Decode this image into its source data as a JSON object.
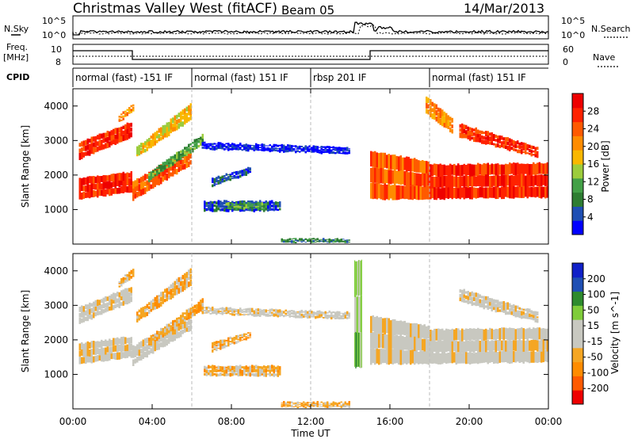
{
  "header": {
    "title": "Christmas Valley West (fitACF)",
    "beam": "Beam 05",
    "date": "14/Mar/2013"
  },
  "top_panels": {
    "nsky_label": "N.Sky",
    "nsky_ticks": [
      "10^5",
      "10^0"
    ],
    "nsky_right_ticks": [
      "10^5",
      "10^0"
    ],
    "nsearch_label": "N.Search",
    "freq_label_1": "Freq.",
    "freq_label_2": "[MHz]",
    "freq_ticks": [
      "10",
      "8"
    ],
    "nave_ticks": [
      "60",
      "0"
    ],
    "nave_label": "Nave",
    "cpid_label": "CPID"
  },
  "cpid_segments": [
    {
      "label": "normal (fast) -151 IF",
      "start_hour": 0,
      "end_hour": 6
    },
    {
      "label": "normal (fast) 151 IF",
      "start_hour": 6,
      "end_hour": 12
    },
    {
      "label": "rbsp 201 IF",
      "start_hour": 12,
      "end_hour": 18
    },
    {
      "label": "normal (fast) 151 IF",
      "start_hour": 18,
      "end_hour": 24
    }
  ],
  "chart_data": [
    {
      "type": "heatmap",
      "panel": "power",
      "ylabel": "Slant Range [km]",
      "yticks": [
        1000,
        2000,
        3000,
        4000
      ],
      "ylim": [
        0,
        4500
      ],
      "xlim_hours": [
        0,
        24
      ],
      "colorbar_label": "Power [dB]",
      "colorbar_ticks": [
        "28",
        "24",
        "20",
        "16",
        "12",
        "8",
        "4"
      ],
      "colors": [
        "#0000ff",
        "#1f4fb4",
        "#2e7d32",
        "#43a047",
        "#9ccc3c",
        "#f9b700",
        "#ff8c00",
        "#ff5a00",
        "#ff2200",
        "#ee0000"
      ],
      "regions": [
        {
          "t0": 0.3,
          "t1": 3.0,
          "r0": 1300,
          "r1": 1900,
          "r0e": 1500,
          "r1e": 2100,
          "c": 8
        },
        {
          "t0": 0.3,
          "t1": 3.0,
          "r0": 2450,
          "r1": 2950,
          "r0e": 3100,
          "r1e": 3550,
          "c": 8
        },
        {
          "t0": 2.3,
          "t1": 3.1,
          "r0": 3500,
          "r1": 3700,
          "r0e": 3850,
          "r1e": 4100,
          "c": 6
        },
        {
          "t0": 3.0,
          "t1": 6.0,
          "r0": 1250,
          "r1": 1800,
          "r0e": 2300,
          "r1e": 2800,
          "c": 7
        },
        {
          "t0": 3.2,
          "t1": 6.0,
          "r0": 2500,
          "r1": 2800,
          "r0e": 3600,
          "r1e": 4100,
          "c": 5
        },
        {
          "t0": 3.8,
          "t1": 6.6,
          "r0": 1800,
          "r1": 2050,
          "r0e": 2900,
          "r1e": 3200,
          "c": 3
        },
        {
          "t0": 6.6,
          "t1": 10.5,
          "r0": 950,
          "r1": 1250,
          "r0e": 950,
          "r1e": 1250,
          "c": 1
        },
        {
          "t0": 7.7,
          "t1": 9.8,
          "r0": 1000,
          "r1": 1200,
          "r0e": 1000,
          "r1e": 1200,
          "c": 3
        },
        {
          "t0": 7.0,
          "t1": 9.0,
          "r0": 1650,
          "r1": 1900,
          "r0e": 2050,
          "r1e": 2250,
          "c": 1
        },
        {
          "t0": 6.5,
          "t1": 14.0,
          "r0": 2750,
          "r1": 2950,
          "r0e": 2600,
          "r1e": 2800,
          "c": 0
        },
        {
          "t0": 10.5,
          "t1": 14.0,
          "r0": 50,
          "r1": 150,
          "r0e": 50,
          "r1e": 150,
          "c": 2
        },
        {
          "t0": 15.0,
          "t1": 18.0,
          "r0": 1300,
          "r1": 2700,
          "r0e": 1300,
          "r1e": 2400,
          "c": 7
        },
        {
          "t0": 18.0,
          "t1": 24.0,
          "r0": 1300,
          "r1": 2300,
          "r0e": 1350,
          "r1e": 2350,
          "c": 8
        },
        {
          "t0": 19.5,
          "t1": 23.5,
          "r0": 3100,
          "r1": 3500,
          "r0e": 2500,
          "r1e": 2800,
          "c": 8
        },
        {
          "t0": 17.8,
          "t1": 19.2,
          "r0": 3800,
          "r1": 4300,
          "r0e": 3200,
          "r1e": 3600,
          "c": 6
        }
      ]
    },
    {
      "type": "heatmap",
      "panel": "velocity",
      "ylabel": "Slant Range [km]",
      "yticks": [
        1000,
        2000,
        3000,
        4000
      ],
      "ylim": [
        0,
        4500
      ],
      "xlim_hours": [
        0,
        24
      ],
      "xticks": [
        "00:00",
        "04:00",
        "08:00",
        "12:00",
        "16:00",
        "20:00",
        "00:00"
      ],
      "xlabel": "Time UT",
      "colorbar_label": "Velocity [m s^-1]",
      "colorbar_ticks": [
        "200",
        "100",
        "50",
        "15",
        "-15",
        "-50",
        "-100",
        "-200"
      ],
      "colors": [
        "#ee0000",
        "#ff5a00",
        "#ff8c00",
        "#f5a623",
        "#c8c8c0",
        "#c8c8c0",
        "#7fcc3a",
        "#2e8b2e",
        "#1f4fb4",
        "#1020c8"
      ],
      "regions": [
        {
          "t0": 0.3,
          "t1": 3.0,
          "r0": 1300,
          "r1": 1900,
          "r0e": 1500,
          "r1e": 2100,
          "c": 4
        },
        {
          "t0": 0.3,
          "t1": 3.0,
          "r0": 2450,
          "r1": 2950,
          "r0e": 3100,
          "r1e": 3550,
          "c": 4
        },
        {
          "t0": 2.3,
          "t1": 3.1,
          "r0": 3500,
          "r1": 3700,
          "r0e": 3850,
          "r1e": 4100,
          "c": 3
        },
        {
          "t0": 3.0,
          "t1": 6.0,
          "r0": 1250,
          "r1": 1800,
          "r0e": 2300,
          "r1e": 2800,
          "c": 4
        },
        {
          "t0": 3.2,
          "t1": 6.0,
          "r0": 2500,
          "r1": 2800,
          "r0e": 3600,
          "r1e": 4100,
          "c": 3
        },
        {
          "t0": 3.8,
          "t1": 6.6,
          "r0": 1800,
          "r1": 2050,
          "r0e": 2900,
          "r1e": 3200,
          "c": 3
        },
        {
          "t0": 6.6,
          "t1": 10.5,
          "r0": 950,
          "r1": 1250,
          "r0e": 950,
          "r1e": 1250,
          "c": 3
        },
        {
          "t0": 7.0,
          "t1": 9.0,
          "r0": 1650,
          "r1": 1900,
          "r0e": 2050,
          "r1e": 2250,
          "c": 3
        },
        {
          "t0": 6.5,
          "t1": 14.0,
          "r0": 2750,
          "r1": 2950,
          "r0e": 2600,
          "r1e": 2800,
          "c": 4
        },
        {
          "t0": 10.5,
          "t1": 14.0,
          "r0": 50,
          "r1": 200,
          "r0e": 50,
          "r1e": 200,
          "c": 3
        },
        {
          "t0": 15.0,
          "t1": 18.0,
          "r0": 1300,
          "r1": 2700,
          "r0e": 1300,
          "r1e": 2400,
          "c": 4
        },
        {
          "t0": 18.0,
          "t1": 24.0,
          "r0": 1300,
          "r1": 2300,
          "r0e": 1350,
          "r1e": 2350,
          "c": 4
        },
        {
          "t0": 19.5,
          "t1": 23.5,
          "r0": 3100,
          "r1": 3500,
          "r0e": 2500,
          "r1e": 2800,
          "c": 4
        },
        {
          "t0": 14.2,
          "t1": 14.6,
          "r0": 1200,
          "r1": 4300,
          "r0e": 1200,
          "r1e": 4300,
          "c": 6
        }
      ]
    }
  ]
}
